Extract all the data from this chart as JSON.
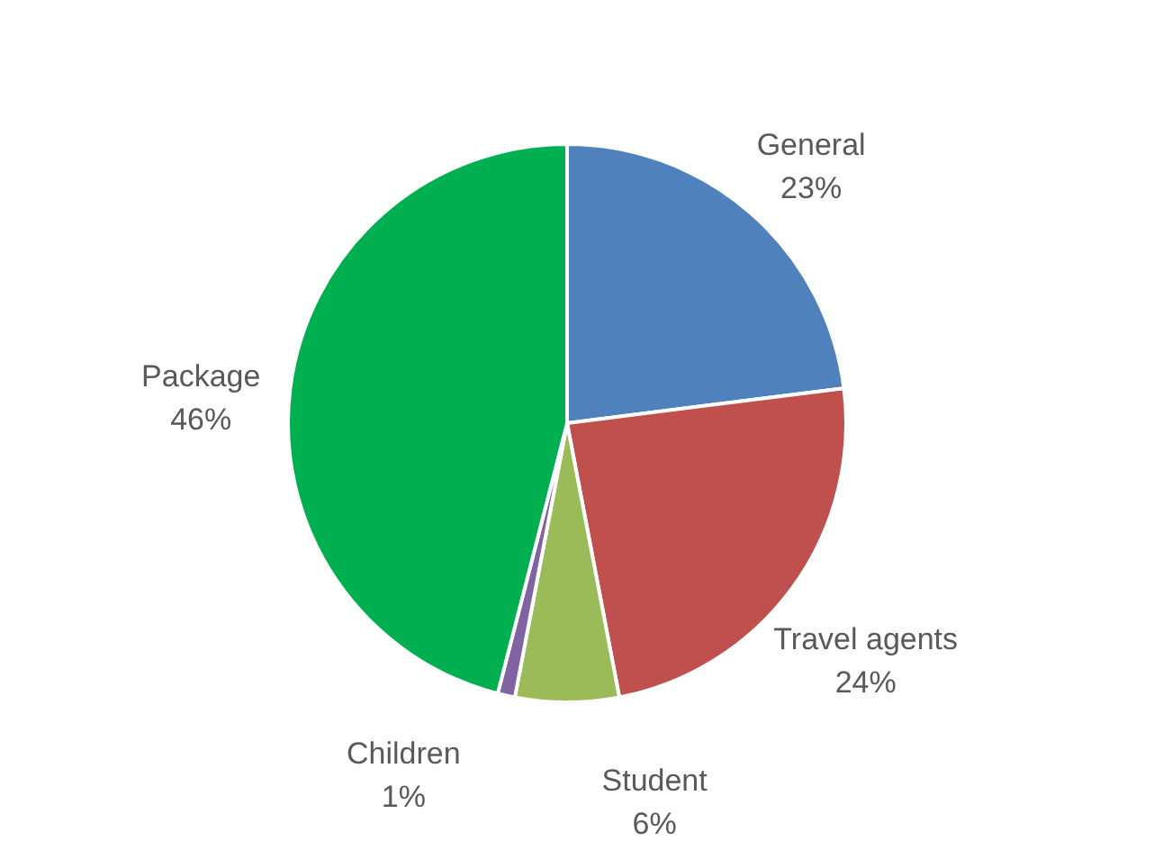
{
  "chart_data": {
    "type": "pie",
    "categories": [
      "General",
      "Travel agents",
      "Student",
      "Children",
      "Package"
    ],
    "values": [
      23,
      24,
      6,
      1,
      46
    ],
    "value_labels": [
      "23%",
      "24%",
      "6%",
      "1%",
      "46%"
    ],
    "colors": [
      "#4f81bd",
      "#c0504d",
      "#9bbb59",
      "#8064a2",
      "#00b050"
    ]
  }
}
